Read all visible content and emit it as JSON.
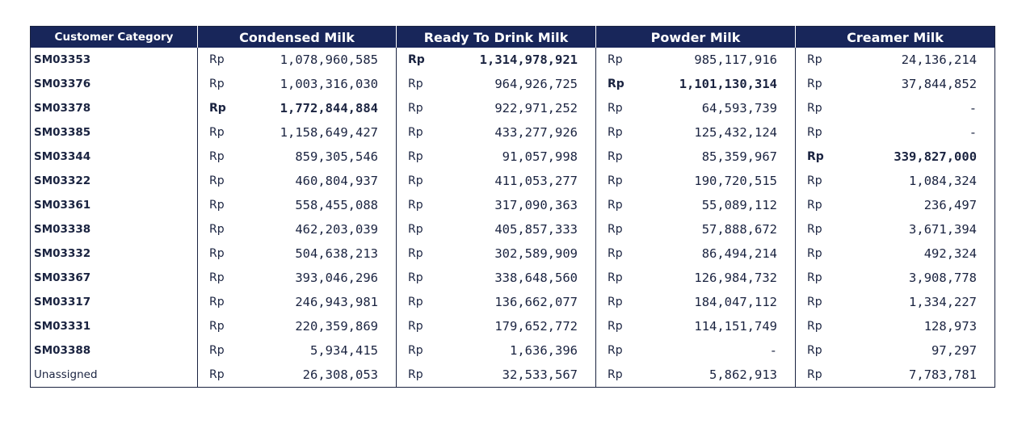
{
  "table": {
    "currency_symbol": "Rp",
    "header": {
      "category": "Customer Category",
      "columns": [
        "Condensed Milk",
        "Ready To Drink Milk",
        "Powder Milk",
        "Creamer Milk"
      ]
    },
    "rows": [
      {
        "category": "SM03353",
        "values": [
          "1,078,960,585",
          "1,314,978,921",
          "985,117,916",
          "24,136,214"
        ],
        "highlight": 1
      },
      {
        "category": "SM03376",
        "values": [
          "1,003,316,030",
          "964,926,725",
          "1,101,130,314",
          "37,844,852"
        ],
        "highlight": 2
      },
      {
        "category": "SM03378",
        "values": [
          "1,772,844,884",
          "922,971,252",
          "64,593,739",
          "-"
        ],
        "highlight": 0
      },
      {
        "category": "SM03385",
        "values": [
          "1,158,649,427",
          "433,277,926",
          "125,432,124",
          "-"
        ],
        "highlight": -1
      },
      {
        "category": "SM03344",
        "values": [
          "859,305,546",
          "91,057,998",
          "85,359,967",
          "339,827,000"
        ],
        "highlight": 3
      },
      {
        "category": "SM03322",
        "values": [
          "460,804,937",
          "411,053,277",
          "190,720,515",
          "1,084,324"
        ],
        "highlight": -1
      },
      {
        "category": "SM03361",
        "values": [
          "558,455,088",
          "317,090,363",
          "55,089,112",
          "236,497"
        ],
        "highlight": -1
      },
      {
        "category": "SM03338",
        "values": [
          "462,203,039",
          "405,857,333",
          "57,888,672",
          "3,671,394"
        ],
        "highlight": -1
      },
      {
        "category": "SM03332",
        "values": [
          "504,638,213",
          "302,589,909",
          "86,494,214",
          "492,324"
        ],
        "highlight": -1
      },
      {
        "category": "SM03367",
        "values": [
          "393,046,296",
          "338,648,560",
          "126,984,732",
          "3,908,778"
        ],
        "highlight": -1
      },
      {
        "category": "SM03317",
        "values": [
          "246,943,981",
          "136,662,077",
          "184,047,112",
          "1,334,227"
        ],
        "highlight": -1
      },
      {
        "category": "SM03331",
        "values": [
          "220,359,869",
          "179,652,772",
          "114,151,749",
          "128,973"
        ],
        "highlight": -1
      },
      {
        "category": "SM03388",
        "values": [
          "5,934,415",
          "1,636,396",
          "-",
          "97,297"
        ],
        "highlight": -1
      },
      {
        "category": "Unassigned",
        "values": [
          "26,308,053",
          "32,533,567",
          "5,862,913",
          "7,783,781"
        ],
        "highlight": -1,
        "plain": true
      }
    ]
  }
}
